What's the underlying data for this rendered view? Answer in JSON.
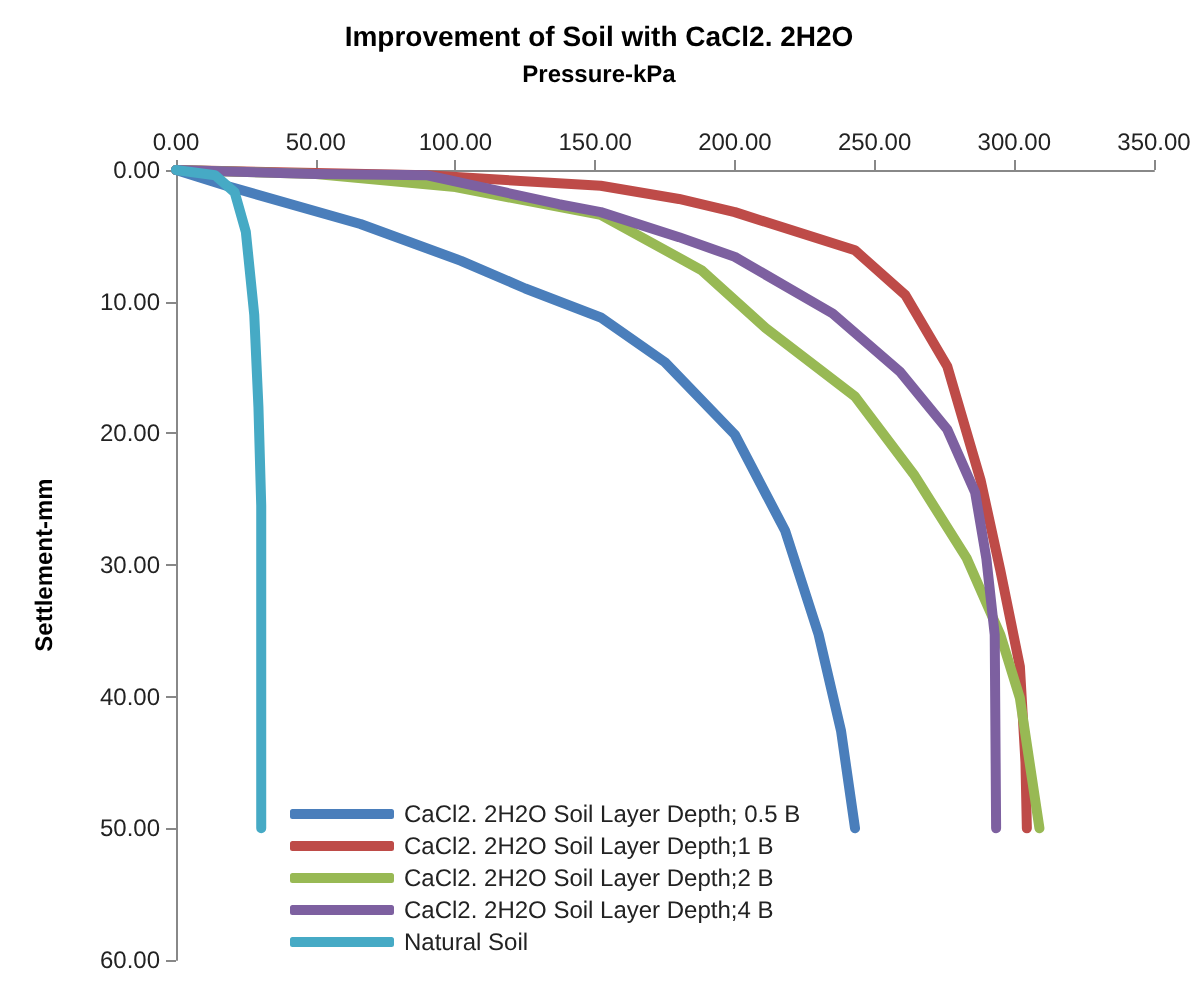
{
  "chart_data": {
    "type": "line",
    "title": "Improvement of Soil with CaCl2. 2H2O",
    "xlabel": "Pressure-kPa",
    "ylabel": "Settlement-mm",
    "xlim": [
      0,
      350
    ],
    "xticks": [
      {
        "value": 0,
        "label": "0.00"
      },
      {
        "value": 50,
        "label": "50.00"
      },
      {
        "value": 100,
        "label": "100.00"
      },
      {
        "value": 150,
        "label": "150.00"
      },
      {
        "value": 200,
        "label": "200.00"
      },
      {
        "value": 250,
        "label": "250.00"
      },
      {
        "value": 300,
        "label": "300.00"
      },
      {
        "value": 350,
        "label": "350.00"
      }
    ],
    "ylim": [
      60,
      0
    ],
    "yticks": [
      {
        "value": 0,
        "label": "0.00"
      },
      {
        "value": 10,
        "label": "10.00"
      },
      {
        "value": 20,
        "label": "20.00"
      },
      {
        "value": 30,
        "label": "30.00"
      },
      {
        "value": 40,
        "label": "40.00"
      },
      {
        "value": 50,
        "label": "50.00"
      },
      {
        "value": 60,
        "label": "60.00"
      }
    ],
    "grid": false,
    "legend": "bottom left",
    "marker": "none",
    "line_style": "solid",
    "series": [
      {
        "name": "CaCl2. 2H2O Soil Layer Depth; 0.5 B",
        "color": "#4a7ebb",
        "x": [
          0,
          18,
          66,
          102,
          125,
          152,
          175,
          200,
          218,
          230,
          238,
          243
        ],
        "values": [
          0,
          1.2,
          4.1,
          6.9,
          9.0,
          11.2,
          14.6,
          20.1,
          27.4,
          35.3,
          42.6,
          50
        ]
      },
      {
        "name": "CaCl2. 2H2O Soil Layer Depth;1 B",
        "color": "#be4b48",
        "x": [
          0,
          90,
          152,
          180,
          200,
          243,
          261,
          276,
          288,
          295,
          302,
          304,
          304.5
        ],
        "values": [
          0,
          0.4,
          1.2,
          2.2,
          3.2,
          6.1,
          9.5,
          14.9,
          23.6,
          30.4,
          37.7,
          45,
          50
        ]
      },
      {
        "name": "CaCl2. 2H2O Soil Layer Depth;2 B",
        "color": "#98b954",
        "x": [
          0,
          50,
          100,
          137,
          152,
          188,
          211,
          243,
          264,
          283,
          295,
          302,
          309
        ],
        "values": [
          0,
          0.3,
          1.3,
          2.8,
          3.4,
          7.6,
          12,
          17.2,
          23.1,
          29.5,
          35.3,
          40.1,
          50
        ]
      },
      {
        "name": "CaCl2. 2H2O Soil Layer Depth;4 B",
        "color": "#7d60a0",
        "x": [
          0,
          50,
          90,
          137,
          152,
          180,
          200,
          235,
          259,
          276,
          286,
          290,
          293,
          293.5
        ],
        "values": [
          0,
          0.3,
          0.4,
          2.6,
          3.2,
          5.1,
          6.6,
          10.9,
          15.3,
          19.7,
          24.5,
          29.5,
          35.3,
          50
        ]
      },
      {
        "name": "Natural Soil",
        "color": "#46aac5",
        "x": [
          0,
          14,
          21,
          25,
          28,
          29.5,
          30.5,
          30.5
        ],
        "values": [
          0,
          0.4,
          1.7,
          4.7,
          11,
          18,
          25.5,
          50
        ]
      }
    ]
  }
}
